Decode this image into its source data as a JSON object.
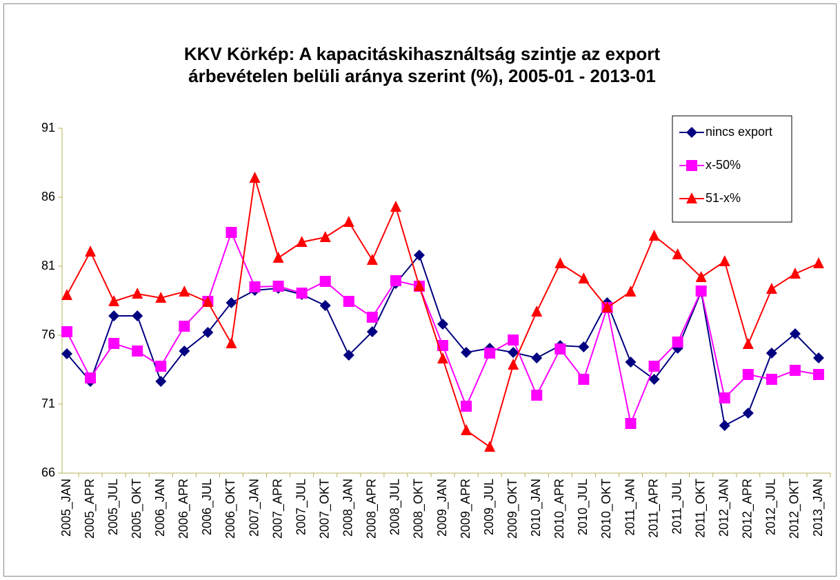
{
  "chart_data": {
    "type": "line",
    "title": [
      "KKV Körkép: A kapacitáskihasználtság szintje az export",
      "árbevételen belüli aránya szerint (%), 2005-01 - 2013-01"
    ],
    "categories": [
      "2005_JAN",
      "2005_APR",
      "2005_JUL",
      "2005_OKT",
      "2006_JAN",
      "2006_APR",
      "2006_JUL",
      "2006_OKT",
      "2007_JAN",
      "2007_APR",
      "2007_JUL",
      "2007_OKT",
      "2008_JAN",
      "2008_APR",
      "2008_JUL",
      "2008_OKT",
      "2009_JAN",
      "2009_APR",
      "2009_JUL",
      "2009_OKT",
      "2010_JAN",
      "2010_APR",
      "2010_JUL",
      "2010_OKT",
      "2011_JAN",
      "2011_APR",
      "2011_JUL",
      "2011_OKT",
      "2012_JAN",
      "2012_APR",
      "2012_JUL",
      "2012_OKT",
      "2013_JAN"
    ],
    "series": [
      {
        "name": "nincs export",
        "color": "#000080",
        "marker": "diamond",
        "values": [
          74.65,
          72.65,
          77.4,
          77.4,
          72.65,
          74.85,
          76.2,
          78.35,
          79.25,
          79.4,
          78.95,
          78.15,
          74.55,
          76.25,
          79.75,
          81.8,
          76.8,
          74.75,
          75.05,
          74.75,
          74.35,
          75.25,
          75.15,
          78.35,
          74.05,
          72.8,
          75.05,
          79.15,
          69.45,
          70.35,
          74.7,
          76.1,
          74.35
        ]
      },
      {
        "name": "x-50%",
        "color": "#ff00ff",
        "marker": "square",
        "values": [
          76.25,
          72.9,
          75.4,
          74.85,
          73.75,
          76.65,
          78.45,
          83.45,
          79.5,
          79.55,
          79.05,
          79.9,
          78.45,
          77.3,
          79.95,
          79.55,
          75.25,
          70.85,
          74.7,
          75.65,
          71.65,
          75.0,
          72.8,
          78.0,
          69.6,
          73.75,
          75.5,
          79.2,
          71.45,
          73.15,
          72.8,
          73.45,
          73.15
        ]
      },
      {
        "name": "51-x%",
        "color": "#ff0000",
        "marker": "triangle",
        "values": [
          78.9,
          82.05,
          78.45,
          79.0,
          78.7,
          79.15,
          78.4,
          75.4,
          87.4,
          81.6,
          82.75,
          83.1,
          84.2,
          81.45,
          85.3,
          79.55,
          74.3,
          69.1,
          67.9,
          73.85,
          77.7,
          81.2,
          80.1,
          78.0,
          79.15,
          83.2,
          81.85,
          80.2,
          81.35,
          75.35,
          79.35,
          80.45,
          81.2
        ]
      }
    ],
    "ylim": [
      66,
      91
    ],
    "yticks": [
      66,
      71,
      76,
      81,
      86,
      91
    ],
    "grid": false,
    "legend": "top-right"
  }
}
